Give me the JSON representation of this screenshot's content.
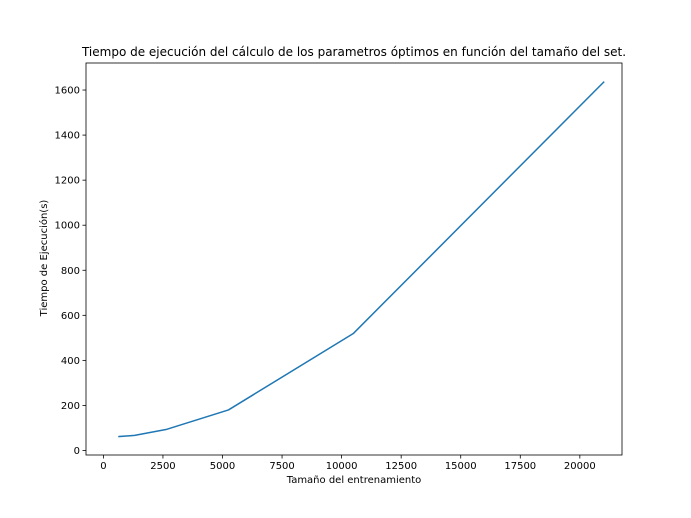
{
  "chart_data": {
    "type": "line",
    "title": "Tiempo de ejecución del cálculo de los parametros óptimos en función del tamaño del set.",
    "xlabel": "Tamaño del entrenamiento",
    "ylabel": "Tiempo de Ejecución(s)",
    "xlim": [
      -730,
      21770
    ],
    "ylim": [
      -20,
      1720
    ],
    "xticks": [
      0,
      2500,
      5000,
      7500,
      10000,
      12500,
      15000,
      17500,
      20000
    ],
    "yticks": [
      0,
      200,
      400,
      600,
      800,
      1000,
      1200,
      1400,
      1600
    ],
    "grid": false,
    "series": [
      {
        "color": "#1f77b4",
        "x": [
          656,
          1312,
          2625,
          5250,
          10500,
          21000
        ],
        "y": [
          62,
          67,
          93,
          180,
          520,
          1635
        ]
      }
    ]
  }
}
